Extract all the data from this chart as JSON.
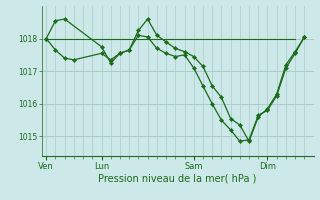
{
  "background_color": "#cce8e8",
  "grid_color": "#aacccc",
  "line_color": "#1a6b1a",
  "marker_color": "#1a6b1a",
  "xlabel": "Pression niveau de la mer( hPa )",
  "ylim": [
    1014.4,
    1019.0
  ],
  "yticks": [
    1015,
    1016,
    1017,
    1018
  ],
  "day_labels": [
    "Ven",
    "Lun",
    "Sam",
    "Dim"
  ],
  "day_positions": [
    0,
    36,
    96,
    144
  ],
  "xlim": [
    -3,
    174
  ],
  "series1_x": [
    0,
    6,
    12,
    36,
    42,
    48,
    54,
    60,
    66,
    72,
    78,
    84,
    90,
    96,
    102,
    108,
    114,
    120,
    126,
    132,
    138,
    144,
    150,
    156,
    162,
    168
  ],
  "series1_y": [
    1018.0,
    1018.55,
    1018.6,
    1017.75,
    1017.25,
    1017.55,
    1017.65,
    1018.25,
    1018.6,
    1018.1,
    1017.9,
    1017.7,
    1017.6,
    1017.45,
    1017.15,
    1016.55,
    1016.2,
    1015.55,
    1015.35,
    1014.85,
    1015.6,
    1015.85,
    1016.3,
    1017.2,
    1017.6,
    1018.05
  ],
  "series2_x": [
    0,
    6,
    12,
    18,
    36,
    42,
    48,
    54,
    60,
    66,
    72,
    78,
    84,
    90,
    96,
    102,
    108,
    114,
    120,
    126,
    132,
    138,
    144,
    150,
    156,
    162,
    168
  ],
  "series2_y": [
    1018.0,
    1017.65,
    1017.4,
    1017.35,
    1017.55,
    1017.35,
    1017.55,
    1017.65,
    1018.1,
    1018.05,
    1017.7,
    1017.55,
    1017.45,
    1017.5,
    1017.1,
    1016.55,
    1016.0,
    1015.5,
    1015.2,
    1014.85,
    1014.9,
    1015.65,
    1015.8,
    1016.25,
    1017.1,
    1017.55,
    1018.05
  ],
  "series3_x": [
    0,
    162
  ],
  "series3_y": [
    1018.0,
    1018.0
  ],
  "tick_x": [
    0,
    6,
    12,
    18,
    24,
    30,
    36,
    42,
    48,
    54,
    60,
    66,
    72,
    78,
    84,
    90,
    96,
    102,
    108,
    114,
    120,
    126,
    132,
    138,
    144,
    150,
    156,
    162,
    168
  ]
}
